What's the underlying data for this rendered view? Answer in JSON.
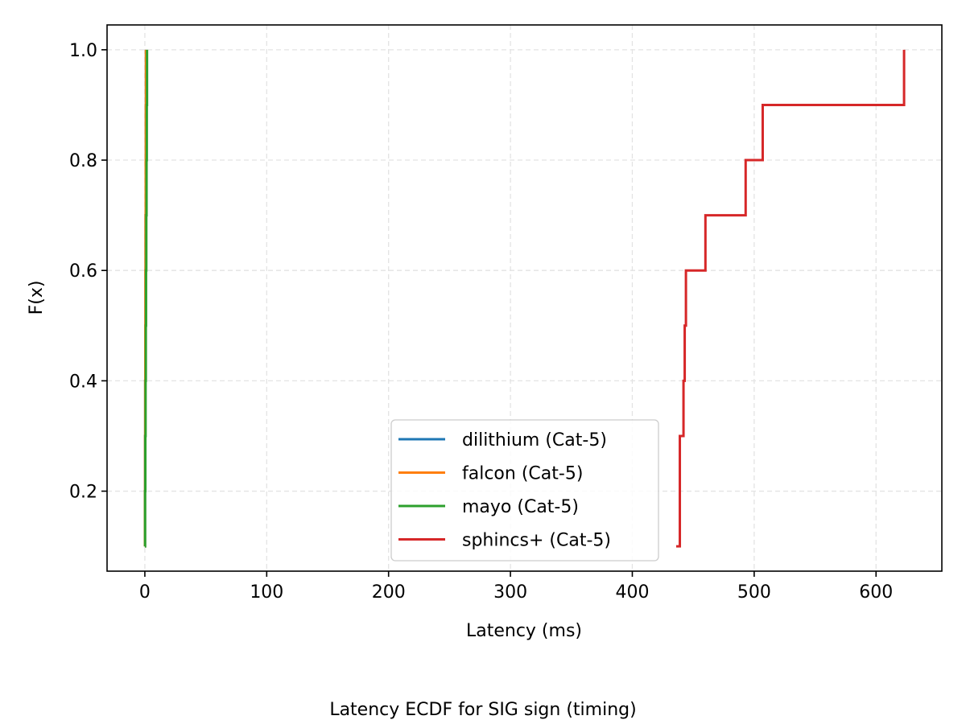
{
  "chart_data": {
    "type": "line",
    "drawstyle": "steps-post",
    "caption": "Latency ECDF for SIG sign (timing)",
    "xlabel": "Latency (ms)",
    "ylabel": "F(x)",
    "xlim": [
      -31.0,
      654.0
    ],
    "ylim": [
      0.055,
      1.045
    ],
    "xticks": [
      0,
      100,
      200,
      300,
      400,
      500,
      600
    ],
    "xtick_labels": [
      "0",
      "100",
      "200",
      "300",
      "400",
      "500",
      "600"
    ],
    "yticks": [
      0.2,
      0.4,
      0.6,
      0.8,
      1.0
    ],
    "ytick_labels": [
      "0.2",
      "0.4",
      "0.6",
      "0.8",
      "1.0"
    ],
    "grid": true,
    "legend_position": "lower-center",
    "series": [
      {
        "name": "dilithium (Cat-5)",
        "color": "#1f77b4",
        "x": [
          0.0,
          0.1,
          0.2,
          0.3,
          0.4,
          0.5,
          0.6,
          0.7,
          0.8,
          0.9
        ],
        "y": [
          0.1,
          0.2,
          0.3,
          0.4,
          0.5,
          0.6,
          0.7,
          0.8,
          0.9,
          1.0
        ]
      },
      {
        "name": "falcon (Cat-5)",
        "color": "#ff7f0e",
        "x": [
          0.0,
          0.1,
          0.2,
          0.3,
          0.4,
          0.5,
          0.6,
          0.7,
          0.8,
          0.9
        ],
        "y": [
          0.1,
          0.2,
          0.3,
          0.4,
          0.5,
          0.6,
          0.7,
          0.8,
          0.9,
          1.0
        ]
      },
      {
        "name": "mayo (Cat-5)",
        "color": "#2ca02c",
        "x": [
          0.0,
          0.2,
          0.4,
          0.6,
          0.8,
          1.0,
          1.2,
          1.4,
          1.6,
          1.8
        ],
        "y": [
          0.1,
          0.2,
          0.3,
          0.4,
          0.5,
          0.6,
          0.7,
          0.8,
          0.9,
          1.0
        ]
      },
      {
        "name": "sphincs+ (Cat-5)",
        "color": "#d62728",
        "x": [
          436,
          439,
          439,
          442,
          443,
          444,
          460,
          493,
          507,
          623
        ],
        "y": [
          0.1,
          0.2,
          0.3,
          0.4,
          0.5,
          0.6,
          0.7,
          0.8,
          0.9,
          1.0
        ]
      }
    ]
  }
}
